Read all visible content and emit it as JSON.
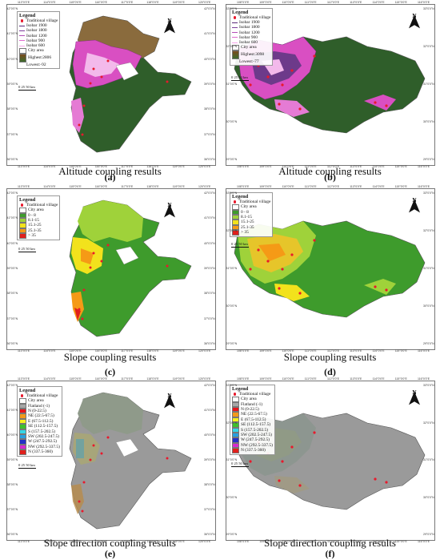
{
  "panels": [
    {
      "id": "a",
      "letter": "(a)",
      "caption": "Altitude coupling results",
      "legend": {
        "title": "Legend",
        "items": [
          {
            "kind": "dot",
            "label": "Traditional village",
            "color": "#e8192c"
          },
          {
            "kind": "line",
            "label": "Isobar 1900",
            "color": "#5a2a7a"
          },
          {
            "kind": "line",
            "label": "Isobar 1800",
            "color": "#7d3e9c"
          },
          {
            "kind": "line",
            "label": "Isobar 1200",
            "color": "#b44fb8"
          },
          {
            "kind": "line",
            "label": "Isobar 900",
            "color": "#e06ad0"
          },
          {
            "kind": "line",
            "label": "Isobar 600",
            "color": "#f7a6ea"
          },
          {
            "kind": "box",
            "label": "City area",
            "color": "#ffffff"
          },
          {
            "kind": "grad",
            "label": "Highest:2806"
          },
          {
            "kind": "none",
            "label": "Lowest:-92"
          }
        ]
      },
      "scale": "0  25 50 km",
      "north": "N",
      "lon_ticks": [
        "113°0'0\"E",
        "114°0'0\"E",
        "115°0'0\"E",
        "116°0'0\"E",
        "117°0'0\"E",
        "118°0'0\"E",
        "119°0'0\"E",
        "120°0'0\"E"
      ],
      "lat_ticks": [
        "42°0'0\"N",
        "41°0'0\"N",
        "40°0'0\"N",
        "39°0'0\"N",
        "38°0'0\"N",
        "37°0'0\"N",
        "36°0'0\"N"
      ]
    },
    {
      "id": "b",
      "letter": "(b)",
      "caption": "Altitude coupling results",
      "legend": {
        "title": "Legend",
        "items": [
          {
            "kind": "dot",
            "label": "Traditional village",
            "color": "#e8192c"
          },
          {
            "kind": "line",
            "label": "Isobar 1900",
            "color": "#5a2a7a"
          },
          {
            "kind": "line",
            "label": "Isobar 1800",
            "color": "#7d3e9c"
          },
          {
            "kind": "line",
            "label": "Isobar 1200",
            "color": "#b44fb8"
          },
          {
            "kind": "line",
            "label": "Isobar 900",
            "color": "#e06ad0"
          },
          {
            "kind": "line",
            "label": "Isobar 600",
            "color": "#f7a6ea"
          },
          {
            "kind": "box",
            "label": "City area",
            "color": "#ffffff"
          },
          {
            "kind": "grad",
            "label": "Highest:3098"
          },
          {
            "kind": "none",
            "label": "Lowest:-77"
          }
        ]
      },
      "scale": "0  25 50 km",
      "north": "N",
      "lon_ticks": [
        "108°0'0\"E",
        "109°0'0\"E",
        "110°0'0\"E",
        "111°0'0\"E",
        "112°0'0\"E",
        "113°0'0\"E",
        "114°0'0\"E",
        "115°0'0\"E",
        "116°0'0\"E"
      ],
      "lat_ticks": [
        "33°0'0\"N",
        "32°0'0\"N",
        "31°0'0\"N",
        "30°0'0\"N",
        "29°0'0\"N"
      ]
    },
    {
      "id": "c",
      "letter": "(c)",
      "caption": "Slope coupling results",
      "legend": {
        "title": "Legend",
        "items": [
          {
            "kind": "dot",
            "label": "Traditional village",
            "color": "#e8192c"
          },
          {
            "kind": "box",
            "label": "City area",
            "color": "#ffffff"
          },
          {
            "kind": "box",
            "label": "0 - 8",
            "color": "#3e9b2c"
          },
          {
            "kind": "box",
            "label": "8.1-15",
            "color": "#9fd23a"
          },
          {
            "kind": "box",
            "label": "15.1-25",
            "color": "#f2e21c"
          },
          {
            "kind": "box",
            "label": "25.1-35",
            "color": "#f59a16"
          },
          {
            "kind": "box",
            "label": "> 35",
            "color": "#e0201c"
          }
        ]
      },
      "scale": "0  25 50 km",
      "north": "N",
      "lon_ticks": [
        "113°0'0\"E",
        "114°0'0\"E",
        "115°0'0\"E",
        "116°0'0\"E",
        "117°0'0\"E",
        "118°0'0\"E",
        "119°0'0\"E",
        "120°0'0\"E"
      ],
      "lat_ticks": [
        "42°0'0\"N",
        "41°0'0\"N",
        "40°0'0\"N",
        "39°0'0\"N",
        "38°0'0\"N",
        "37°0'0\"N",
        "36°0'0\"N"
      ]
    },
    {
      "id": "d",
      "letter": "(d)",
      "caption": "Slope coupling results",
      "legend": {
        "title": "Legend",
        "items": [
          {
            "kind": "dot",
            "label": "Traditional village",
            "color": "#e8192c"
          },
          {
            "kind": "box",
            "label": "City area",
            "color": "#ffffff"
          },
          {
            "kind": "box",
            "label": "0 - 8",
            "color": "#3e9b2c"
          },
          {
            "kind": "box",
            "label": "8.1-15",
            "color": "#9fd23a"
          },
          {
            "kind": "box",
            "label": "15.1-25",
            "color": "#f2e21c"
          },
          {
            "kind": "box",
            "label": "25.1-35",
            "color": "#f59a16"
          },
          {
            "kind": "box",
            "label": "> 35",
            "color": "#e0201c"
          }
        ]
      },
      "scale": "0  25 50 km",
      "north": "N",
      "lon_ticks": [
        "108°0'0\"E",
        "109°0'0\"E",
        "110°0'0\"E",
        "111°0'0\"E",
        "112°0'0\"E",
        "113°0'0\"E",
        "114°0'0\"E",
        "115°0'0\"E",
        "116°0'0\"E"
      ],
      "lat_ticks": [
        "33°0'0\"N",
        "32°0'0\"N",
        "31°0'0\"N",
        "30°0'0\"N",
        "29°0'0\"N"
      ]
    },
    {
      "id": "e",
      "letter": "(e)",
      "caption": "Slope direction coupling results",
      "legend": {
        "title": "Legend",
        "items": [
          {
            "kind": "dot",
            "label": "Traditional village",
            "color": "#e8192c"
          },
          {
            "kind": "box",
            "label": "City area",
            "color": "#ffffff"
          },
          {
            "kind": "box",
            "label": "Flatland (-1)",
            "color": "#a6a6a6"
          },
          {
            "kind": "box",
            "label": "N (0-22.5)",
            "color": "#e8141b"
          },
          {
            "kind": "box",
            "label": "NE (22.5-67.5)",
            "color": "#f29a1b"
          },
          {
            "kind": "box",
            "label": "E (67.5-112.5)",
            "color": "#f7f01e"
          },
          {
            "kind": "box",
            "label": "SE (112.5-157.5)",
            "color": "#3fc02c"
          },
          {
            "kind": "box",
            "label": "S (157.5-202.5)",
            "color": "#35d6e6"
          },
          {
            "kind": "box",
            "label": "SW (202.5-247.5)",
            "color": "#28a0e0"
          },
          {
            "kind": "box",
            "label": "W (247.5-292.5)",
            "color": "#2430c8"
          },
          {
            "kind": "box",
            "label": "NW (292.5-337.5)",
            "color": "#d62ad0"
          },
          {
            "kind": "box",
            "label": "N (337.5-360)",
            "color": "#e0201c"
          }
        ]
      },
      "scale": "0  25 50 km",
      "north": "N",
      "lon_ticks": [
        "113°0'0\"E",
        "114°0'0\"E",
        "115°0'0\"E",
        "116°0'0\"E",
        "117°0'0\"E",
        "118°0'0\"E",
        "119°0'0\"E",
        "120°0'0\"E"
      ],
      "lat_ticks": [
        "42°0'0\"N",
        "41°0'0\"N",
        "40°0'0\"N",
        "39°0'0\"N",
        "38°0'0\"N",
        "37°0'0\"N",
        "36°0'0\"N"
      ]
    },
    {
      "id": "f",
      "letter": "(f)",
      "caption": "Slope direction coupling results",
      "legend": {
        "title": "Legend",
        "items": [
          {
            "kind": "dot",
            "label": "Traditional village",
            "color": "#e8192c"
          },
          {
            "kind": "box",
            "label": "City area",
            "color": "#ffffff"
          },
          {
            "kind": "box",
            "label": "Flatland (-1)",
            "color": "#a6a6a6"
          },
          {
            "kind": "box",
            "label": "N (0-22.5)",
            "color": "#e8141b"
          },
          {
            "kind": "box",
            "label": "NE (22.5-67.5)",
            "color": "#f29a1b"
          },
          {
            "kind": "box",
            "label": "E (67.5-112.5)",
            "color": "#f7f01e"
          },
          {
            "kind": "box",
            "label": "SE (112.5-157.5)",
            "color": "#3fc02c"
          },
          {
            "kind": "box",
            "label": "S (157.5-202.5)",
            "color": "#35d6e6"
          },
          {
            "kind": "box",
            "label": "SW (202.5-247.5)",
            "color": "#28a0e0"
          },
          {
            "kind": "box",
            "label": "W (247.5-292.5)",
            "color": "#2430c8"
          },
          {
            "kind": "box",
            "label": "NW (292.5-337.5)",
            "color": "#d62ad0"
          },
          {
            "kind": "box",
            "label": "N (337.5-360)",
            "color": "#e0201c"
          }
        ]
      },
      "scale": "0  25 50 km",
      "north": "N",
      "lon_ticks": [
        "108°0'0\"E",
        "109°0'0\"E",
        "110°0'0\"E",
        "111°0'0\"E",
        "112°0'0\"E",
        "113°0'0\"E",
        "114°0'0\"E",
        "115°0'0\"E",
        "116°0'0\"E"
      ],
      "lat_ticks": [
        "33°0'0\"N",
        "32°0'0\"N",
        "31°0'0\"N",
        "30°0'0\"N",
        "29°0'0\"N"
      ]
    }
  ]
}
